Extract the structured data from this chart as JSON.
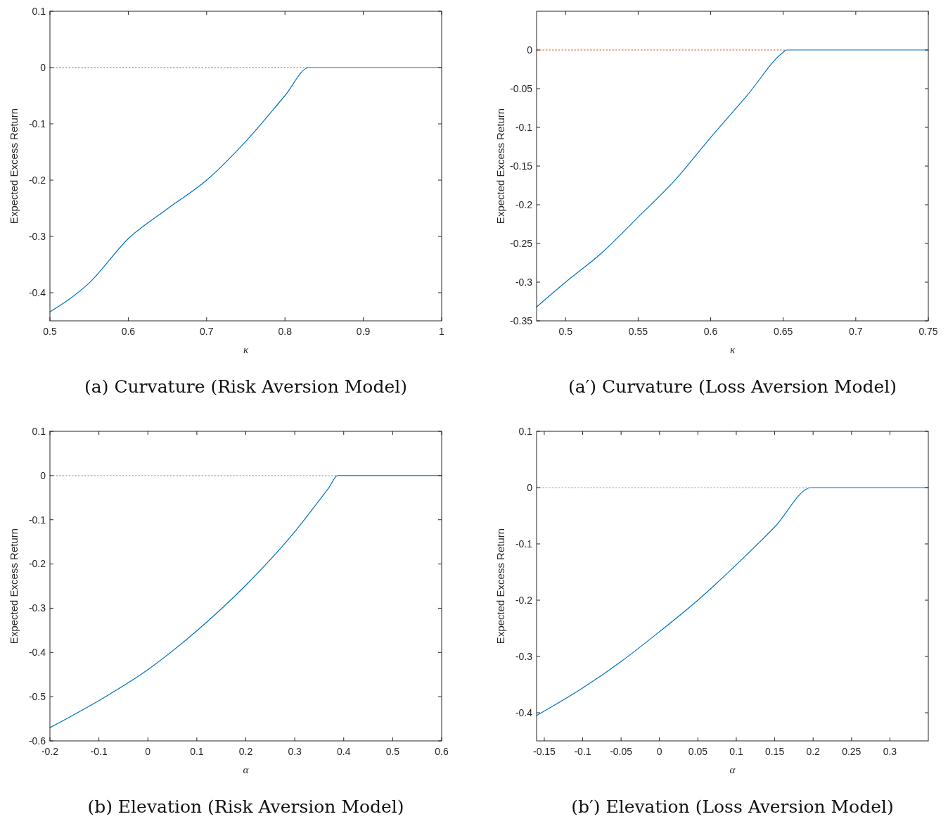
{
  "chart_data": [
    {
      "type": "line",
      "title": "(a) Curvature (Risk Aversion Model)",
      "xlabel": "κ",
      "ylabel": "Expected Excess Return",
      "xlim": [
        0.5,
        1
      ],
      "ylim": [
        -0.45,
        0.1
      ],
      "xticks": [
        0.5,
        0.6,
        0.7,
        0.8,
        0.9,
        1
      ],
      "yticks": [
        -0.4,
        -0.3,
        -0.2,
        -0.1,
        0,
        0.1
      ],
      "series": [
        {
          "color": "#d95319",
          "line_style": "dotted",
          "x": [
            0.5,
            0.8306
          ],
          "values": [
            0,
            0
          ]
        },
        {
          "color": "#0072bd",
          "line_style": "solid",
          "x": [
            0.5,
            0.55,
            0.6,
            0.65,
            0.7,
            0.75,
            0.8,
            0.8306,
            1
          ],
          "values": [
            -0.434,
            -0.383,
            -0.304,
            -0.251,
            -0.2,
            -0.131,
            -0.05,
            0,
            0
          ]
        }
      ]
    },
    {
      "type": "line",
      "title": "(a′) Curvature (Loss Aversion Model)",
      "xlabel": "κ",
      "ylabel": "Expected Excess Return",
      "xlim": [
        0.48,
        0.75
      ],
      "ylim": [
        -0.35,
        0.05
      ],
      "xticks": [
        0.5,
        0.55,
        0.6,
        0.65,
        0.7,
        0.75
      ],
      "yticks": [
        -0.35,
        -0.3,
        -0.25,
        -0.2,
        -0.15,
        -0.1,
        -0.05,
        0
      ],
      "series": [
        {
          "color": "#d95319",
          "line_style": "dotted",
          "x": [
            0.48,
            0.6523
          ],
          "values": [
            0,
            0
          ]
        },
        {
          "color": "#0072bd",
          "line_style": "solid",
          "x": [
            0.48,
            0.5,
            0.525,
            0.55,
            0.575,
            0.6,
            0.625,
            0.65,
            0.6523,
            0.75
          ],
          "values": [
            -0.332,
            -0.3,
            -0.262,
            -0.216,
            -0.169,
            -0.113,
            -0.059,
            -0.003,
            0,
            0
          ]
        }
      ]
    },
    {
      "type": "line",
      "title": "(b) Elevation (Risk Aversion Model)",
      "xlabel": "α",
      "ylabel": "Expected Excess Return",
      "xlim": [
        -0.2,
        0.6
      ],
      "ylim": [
        -0.6,
        0.1
      ],
      "xticks": [
        -0.2,
        -0.1,
        0,
        0.1,
        0.2,
        0.3,
        0.4,
        0.5,
        0.6
      ],
      "yticks": [
        -0.6,
        -0.5,
        -0.4,
        -0.3,
        -0.2,
        -0.1,
        0,
        0.1
      ],
      "series": [
        {
          "color": "#4dbeee",
          "line_style": "dotted",
          "x": [
            -0.2,
            0.3875
          ],
          "values": [
            0,
            0
          ]
        },
        {
          "color": "#0072bd",
          "line_style": "solid",
          "x": [
            -0.2,
            -0.1,
            0,
            0.1,
            0.2,
            0.3,
            0.35,
            0.37,
            0.3875,
            0.6
          ],
          "values": [
            -0.57,
            -0.509,
            -0.439,
            -0.351,
            -0.248,
            -0.127,
            -0.056,
            -0.027,
            0,
            0
          ]
        }
      ]
    },
    {
      "type": "line",
      "title": "(b′) Elevation (Loss Aversion Model)",
      "xlabel": "α",
      "ylabel": "Expected Excess Return",
      "xlim": [
        -0.16,
        0.35
      ],
      "ylim": [
        -0.45,
        0.1
      ],
      "xticks": [
        -0.15,
        -0.1,
        -0.05,
        0,
        0.05,
        0.1,
        0.15,
        0.2,
        0.25,
        0.3
      ],
      "yticks": [
        -0.4,
        -0.3,
        -0.2,
        -0.1,
        0,
        0.1
      ],
      "series": [
        {
          "color": "#4dbeee",
          "line_style": "dotted",
          "x": [
            -0.16,
            0.198
          ],
          "values": [
            0,
            0
          ]
        },
        {
          "color": "#0072bd",
          "line_style": "solid",
          "x": [
            -0.16,
            -0.1,
            -0.05,
            0,
            0.05,
            0.1,
            0.15,
            0.198,
            0.35
          ],
          "values": [
            -0.405,
            -0.356,
            -0.309,
            -0.256,
            -0.2,
            -0.137,
            -0.07,
            0,
            0
          ]
        }
      ]
    }
  ]
}
